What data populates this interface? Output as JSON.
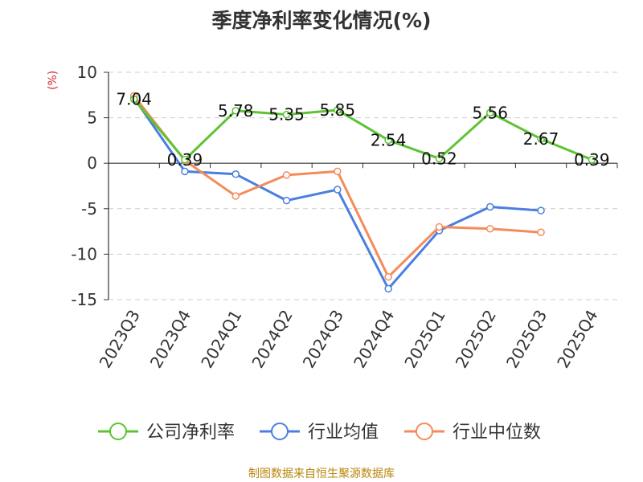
{
  "chart_data": {
    "type": "line",
    "title": "季度净利率变化情况(%)",
    "ylabel": "(%)",
    "ylim": [
      -15,
      10
    ],
    "yticks": [
      "10",
      "5",
      "0",
      "-5",
      "-10",
      "-15"
    ],
    "grid": true,
    "legend_position": "bottom",
    "categories": [
      "2023Q3",
      "2023Q4",
      "2024Q1",
      "2024Q2",
      "2024Q3",
      "2024Q4",
      "2025Q1",
      "2025Q2",
      "2025Q3",
      "2025Q4"
    ],
    "series": [
      {
        "name": "公司净利率",
        "color": "#5cc433",
        "values": [
          7.04,
          0.39,
          5.78,
          5.35,
          5.85,
          2.54,
          0.52,
          5.56,
          2.67,
          0.39
        ],
        "labels": [
          "7.04",
          "0.39",
          "5.78",
          "5.35",
          "5.85",
          "2.54",
          "0.52",
          "5.56",
          "2.67",
          "0.39"
        ]
      },
      {
        "name": "行业均值",
        "color": "#4a7fe0",
        "values": [
          7.2,
          -0.9,
          -1.2,
          -4.1,
          -2.9,
          -13.8,
          -7.4,
          -4.8,
          -5.2,
          null
        ]
      },
      {
        "name": "行业中位数",
        "color": "#f58b5a",
        "values": [
          7.4,
          0.3,
          -3.6,
          -1.3,
          -0.9,
          -12.5,
          -7.0,
          -7.2,
          -7.6,
          null
        ]
      }
    ]
  },
  "source": "制图数据来自恒生聚源数据库"
}
